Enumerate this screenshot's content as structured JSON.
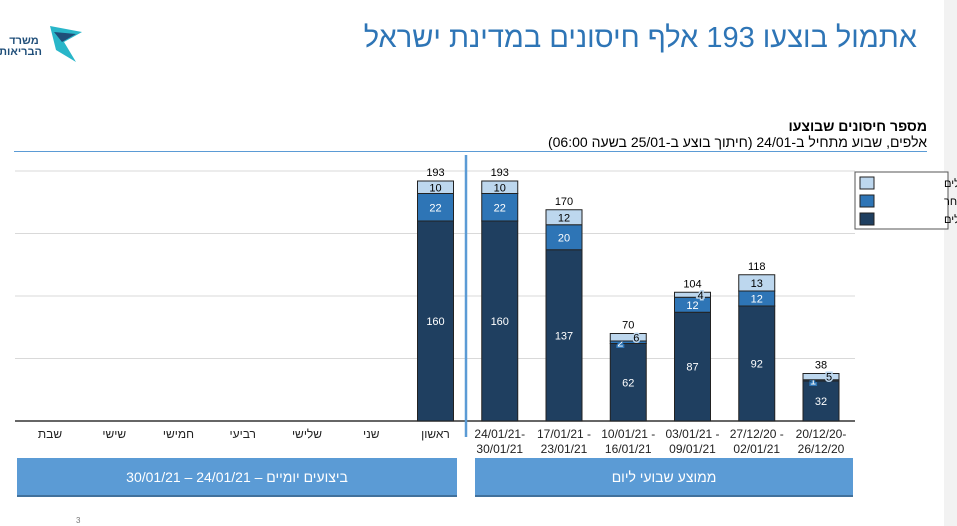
{
  "title": "אתמול בוצעו 193 אלף חיסונים במדינת ישראל",
  "logo_text": "משרד הבריאות",
  "page_number": "3",
  "chart_data": {
    "type": "bar",
    "stacked": true,
    "title": "מספר חיסונים שבוצעו",
    "subtitle": "אלפים, שבוע מתחיל ב-24/01 (חיתוך בוצע ב-25/01 בשעה 06:00)",
    "categories": [
      "20/12/20-26/12/20",
      "27/12/20 - 02/01/21",
      "03/01/21 - 09/01/21",
      "10/01/21 - 16/01/21",
      "17/01/21 - 23/01/21",
      "24/01/21-30/01/21",
      "ראשון",
      "שני",
      "שלישי",
      "רביעי",
      "חמישי",
      "שישי",
      "שבת"
    ],
    "category_lines": [
      [
        "20/12/20-",
        "26/12/20"
      ],
      [
        "27/12/20 -",
        "02/01/21"
      ],
      [
        "03/01/21 -",
        "09/01/21"
      ],
      [
        "10/01/21 -",
        "16/01/21"
      ],
      [
        "17/01/21 -",
        "23/01/21"
      ],
      [
        "24/01/21-",
        "30/01/21"
      ],
      [
        "ראשון",
        ""
      ],
      [
        "שני",
        ""
      ],
      [
        "שלישי",
        ""
      ],
      [
        "רביעי",
        ""
      ],
      [
        "חמישי",
        ""
      ],
      [
        "שישי",
        ""
      ],
      [
        "שבת",
        ""
      ]
    ],
    "series": [
      {
        "name": "קופות החולים",
        "color": "#1f3f60",
        "values": [
          32,
          92,
          87,
          62,
          137,
          160,
          160,
          null,
          null,
          null,
          null,
          null,
          null
        ]
      },
      {
        "name": "אחר",
        "color": "#2e75b6",
        "values": [
          1,
          12,
          12,
          2,
          20,
          22,
          22,
          null,
          null,
          null,
          null,
          null,
          null
        ]
      },
      {
        "name": "בתי החולים",
        "color": "#bdd7ee",
        "values": [
          5,
          13,
          4,
          6,
          12,
          10,
          10,
          null,
          null,
          null,
          null,
          null,
          null
        ]
      }
    ],
    "totals": [
      38,
      118,
      104,
      70,
      170,
      193,
      193,
      null,
      null,
      null,
      null,
      null,
      null
    ],
    "ylim": [
      0,
      200
    ],
    "grid": true,
    "legend": "top-right",
    "x_direction": "right-to-left"
  },
  "bands": {
    "weekly": "ממוצע שבועי ליום",
    "daily": "ביצועים יומיים – 24/01/21 – 30/01/21"
  }
}
